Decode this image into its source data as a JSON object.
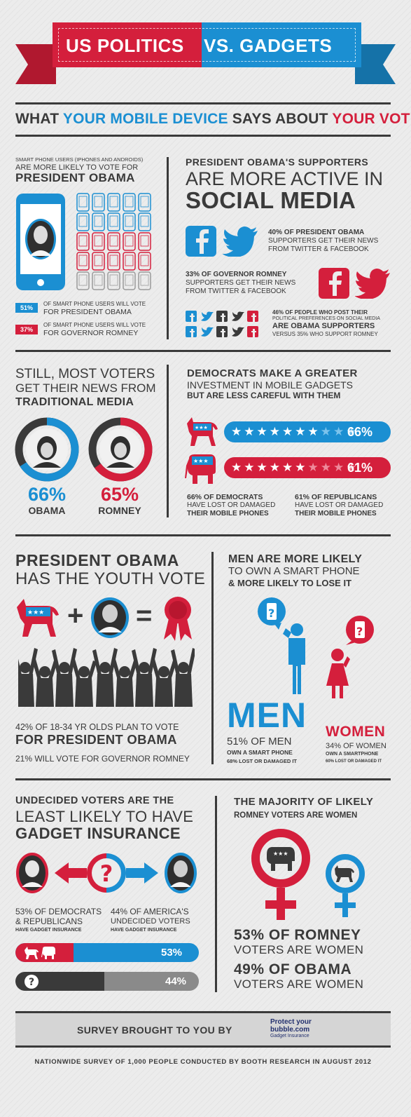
{
  "colors": {
    "red": "#d41f3c",
    "blue": "#1b8fd2",
    "dark": "#3a3a3a",
    "gray": "#7a7a7a"
  },
  "header": {
    "title_left": "US POLITICS",
    "title_right": "VS. GADGETS",
    "subtitle_a": "WHAT ",
    "subtitle_b": "YOUR MOBILE DEVICE",
    "subtitle_c": " SAYS ABOUT ",
    "subtitle_d": "YOUR VOTE"
  },
  "smartphone": {
    "line1": "SMART PHONE USERS (IPHONES AND ANDROIDS)",
    "line2": "ARE MORE LIKELY TO VOTE FOR",
    "line3": "PRESIDENT OBAMA",
    "obama_pct": "51%",
    "obama_l1": "OF SMART PHONE USERS WILL VOTE",
    "obama_l2": "FOR PRESIDENT OBAMA",
    "romney_pct": "37%",
    "romney_l1": "OF SMART PHONE USERS WILL VOTE",
    "romney_l2": "FOR GOVERNOR ROMNEY"
  },
  "social": {
    "h1": "PRESIDENT OBAMA'S SUPPORTERS",
    "h2": "ARE MORE ACTIVE IN",
    "h3": "SOCIAL MEDIA",
    "obama_l1": "40% OF PRESIDENT OBAMA",
    "obama_l2": "SUPPORTERS GET THEIR NEWS",
    "obama_l3": "FROM TWITTER & FACEBOOK",
    "romney_l1": "33% OF GOVERNOR ROMNEY",
    "romney_l2": "SUPPORTERS GET THEIR NEWS",
    "romney_l3": "FROM TWITTER & FACEBOOK",
    "post_l1": "46% OF PEOPLE WHO POST THEIR",
    "post_l2": "POLITICAL PREFERENCES ON SOCIAL MEDIA",
    "post_l3": "ARE OBAMA SUPPORTERS",
    "post_l4": "VERSUS 35% WHO SUPPORT ROMNEY"
  },
  "traditional": {
    "h1": "STILL, MOST VOTERS",
    "h2": "GET THEIR NEWS FROM",
    "h3": "TRADITIONAL MEDIA",
    "obama_pct": "66%",
    "obama_name": "OBAMA",
    "romney_pct": "65%",
    "romney_name": "ROMNEY",
    "obama_value": 0.66,
    "romney_value": 0.65
  },
  "investment": {
    "h1": "DEMOCRATS MAKE A GREATER",
    "h2": "INVESTMENT IN MOBILE GADGETS",
    "h3": "BUT ARE LESS CAREFUL WITH THEM",
    "dem_pct": "66%",
    "rep_pct": "61%",
    "dem_stars": "★★★★★★★★★★",
    "rep_stars": "★★★★★★★★★★",
    "dem_l1": "66% OF DEMOCRATS",
    "dem_l2": "HAVE LOST OR DAMAGED",
    "dem_l3": "THEIR MOBILE PHONES",
    "rep_l1": "61% OF REPUBLICANS",
    "rep_l2": "HAVE LOST OR DAMAGED",
    "rep_l3": "THEIR MOBILE PHONES"
  },
  "youth": {
    "h1": "PRESIDENT  OBAMA",
    "h2": "HAS THE YOUTH VOTE",
    "plus": "+",
    "equals": "=",
    "l1": "42% OF 18-34 YR OLDS PLAN TO VOTE",
    "l2": "FOR PRESIDENT OBAMA",
    "l3": "21% WILL VOTE FOR GOVERNOR ROMNEY"
  },
  "gender": {
    "h1": "MEN ARE MORE LIKELY",
    "h2": "TO OWN A SMART PHONE",
    "h3": "& MORE LIKELY TO LOSE IT",
    "men": "MEN",
    "men_l1": "51% OF MEN",
    "men_l2": "OWN A SMART PHONE",
    "men_l3": "68% LOST OR DAMAGED IT",
    "women": "WOMEN",
    "women_l1": "34% OF WOMEN",
    "women_l2": "OWN A SMARTPHONE",
    "women_l3": "60% LOST OR DAMAGED IT",
    "question": "?"
  },
  "insurance": {
    "h1": "UNDECIDED VOTERS ARE THE",
    "h2": "LEAST LIKELY TO HAVE",
    "h3": "GADGET INSURANCE",
    "question": "?",
    "left_l1": "53% OF DEMOCRATS",
    "left_l2": "& REPUBLICANS",
    "left_l3": "HAVE GADGET INSURANCE",
    "right_l1": "44% OF AMERICA'S",
    "right_l2": "UNDECIDED VOTERS",
    "right_l3": "HAVE GADGET INSURANCE",
    "bar1_pct": "53%",
    "bar2_pct": "44%",
    "bar1_value": 0.53,
    "bar2_value": 0.44
  },
  "majority": {
    "h1": "THE MAJORITY OF LIKELY",
    "h2": "ROMNEY VOTERS ARE WOMEN",
    "l1": "53% OF ROMNEY",
    "l2": "VOTERS ARE WOMEN",
    "l3": "49% OF OBAMA",
    "l4": "VOTERS ARE WOMEN"
  },
  "footer": {
    "survey": "SURVEY BROUGHT TO YOU BY",
    "logo_l1": "Protect your",
    "logo_l2": "bubble.com",
    "logo_l3": "Gadget Insurance",
    "note": "NATIONWIDE SURVEY OF 1,000 PEOPLE CONDUCTED BY BOOTH RESEARCH IN AUGUST 2012"
  }
}
